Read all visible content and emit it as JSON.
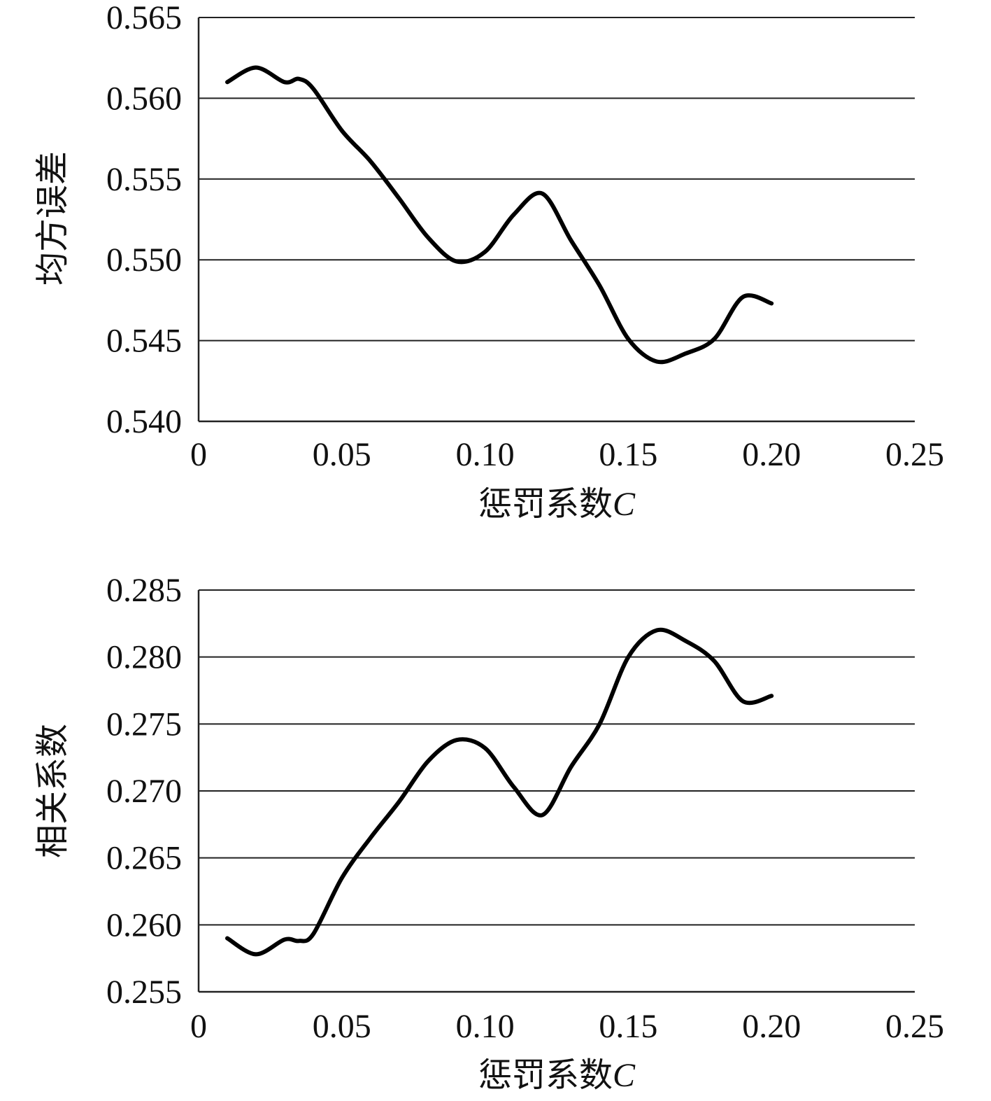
{
  "chart_data": [
    {
      "type": "line",
      "xlabel": "惩罚系数",
      "xlabel_var": "C",
      "ylabel": "均方误差",
      "xlim": [
        0,
        0.25
      ],
      "ylim": [
        0.54,
        0.565
      ],
      "x_ticks": [
        "0",
        "0.05",
        "0.10",
        "0.15",
        "0.20",
        "0.25"
      ],
      "y_ticks": [
        "0.565",
        "0.560",
        "0.555",
        "0.550",
        "0.545",
        "0.540"
      ],
      "grid": "horizontal",
      "series": [
        {
          "x": [
            0.01,
            0.02,
            0.03,
            0.035,
            0.04,
            0.05,
            0.06,
            0.07,
            0.08,
            0.09,
            0.1,
            0.11,
            0.12,
            0.13,
            0.14,
            0.15,
            0.16,
            0.17,
            0.18,
            0.19,
            0.2
          ],
          "values": [
            0.561,
            0.5619,
            0.561,
            0.5612,
            0.5606,
            0.558,
            0.5561,
            0.5538,
            0.5514,
            0.5499,
            0.5505,
            0.5528,
            0.5541,
            0.5512,
            0.5484,
            0.5451,
            0.5437,
            0.5442,
            0.5451,
            0.5477,
            0.5473
          ]
        }
      ]
    },
    {
      "type": "line",
      "xlabel": "惩罚系数",
      "xlabel_var": "C",
      "ylabel": "相关系数",
      "xlim": [
        0,
        0.25
      ],
      "ylim": [
        0.255,
        0.285
      ],
      "x_ticks": [
        "0",
        "0.05",
        "0.10",
        "0.15",
        "0.20",
        "0.25"
      ],
      "y_ticks": [
        "0.285",
        "0.280",
        "0.275",
        "0.270",
        "0.265",
        "0.260",
        "0.255"
      ],
      "grid": "horizontal",
      "series": [
        {
          "x": [
            0.01,
            0.02,
            0.03,
            0.035,
            0.04,
            0.05,
            0.06,
            0.07,
            0.08,
            0.09,
            0.1,
            0.11,
            0.12,
            0.13,
            0.14,
            0.15,
            0.16,
            0.17,
            0.18,
            0.19,
            0.2
          ],
          "values": [
            0.259,
            0.2578,
            0.2589,
            0.2588,
            0.2593,
            0.2635,
            0.2665,
            0.2692,
            0.2722,
            0.2738,
            0.2732,
            0.2703,
            0.2682,
            0.2718,
            0.275,
            0.28,
            0.282,
            0.2812,
            0.2797,
            0.2767,
            0.2771
          ]
        }
      ]
    }
  ]
}
